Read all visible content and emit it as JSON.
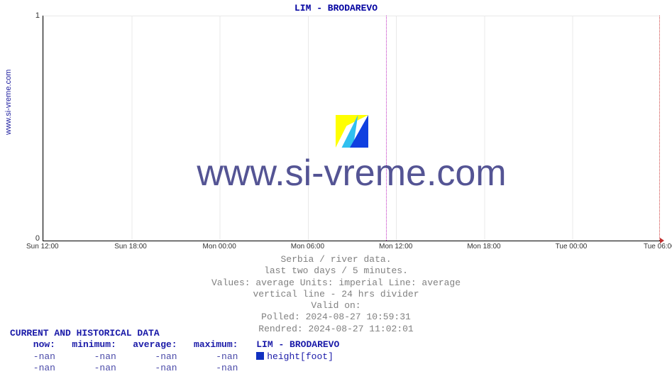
{
  "chart": {
    "title": "LIM -  BRODAREVO",
    "type": "line",
    "background_color": "#ffffff",
    "grid_color": "#e8e8e8",
    "axis_color": "#000000",
    "divider_color": "#c030c0",
    "end_marker_color": "#d04040",
    "ylim": [
      0,
      1
    ],
    "yticks": [
      {
        "value": 0,
        "label": "0",
        "pos_pct": 100
      },
      {
        "value": 1,
        "label": "1",
        "pos_pct": 0
      }
    ],
    "xticks": [
      {
        "label": "Sun 12:00",
        "pos_pct": 0
      },
      {
        "label": "Sun 18:00",
        "pos_pct": 14.28
      },
      {
        "label": "Mon 00:00",
        "pos_pct": 28.57
      },
      {
        "label": "Mon 06:00",
        "pos_pct": 42.85
      },
      {
        "label": "Mon 12:00",
        "pos_pct": 57.14
      },
      {
        "label": "Mon 18:00",
        "pos_pct": 71.42
      },
      {
        "label": "Tue 00:00",
        "pos_pct": 85.71
      },
      {
        "label": "Tue 06:00",
        "pos_pct": 100
      }
    ],
    "divider_24h_pos_pct": 55.5,
    "end_marker_pos_pct": 99.8,
    "series": [
      {
        "name": "height[foot]",
        "color": "#1030c0",
        "values": []
      }
    ]
  },
  "ylabel_side": "www.si-vreme.com",
  "watermark": "www.si-vreme.com",
  "meta": {
    "line1": "Serbia / river data.",
    "line2": "last two days / 5 minutes.",
    "line3": "Values: average  Units: imperial  Line: average",
    "line4": "vertical line - 24 hrs  divider",
    "line5": "Valid on:",
    "line6": "Polled: 2024-08-27 10:59:31",
    "line7": "Rendred: 2024-08-27 11:02:01"
  },
  "data_table": {
    "header": "CURRENT AND HISTORICAL DATA",
    "columns": {
      "now": "now:",
      "min": "minimum:",
      "avg": "average:",
      "max": "maximum:"
    },
    "series_label": "LIM -  BRODAREVO",
    "rows": [
      {
        "now": "-nan",
        "min": "-nan",
        "avg": "-nan",
        "max": "-nan",
        "series": "height[foot]",
        "swatch": "#1030c0"
      },
      {
        "now": "-nan",
        "min": "-nan",
        "avg": "-nan",
        "max": "-nan",
        "series": "",
        "swatch": ""
      }
    ]
  }
}
